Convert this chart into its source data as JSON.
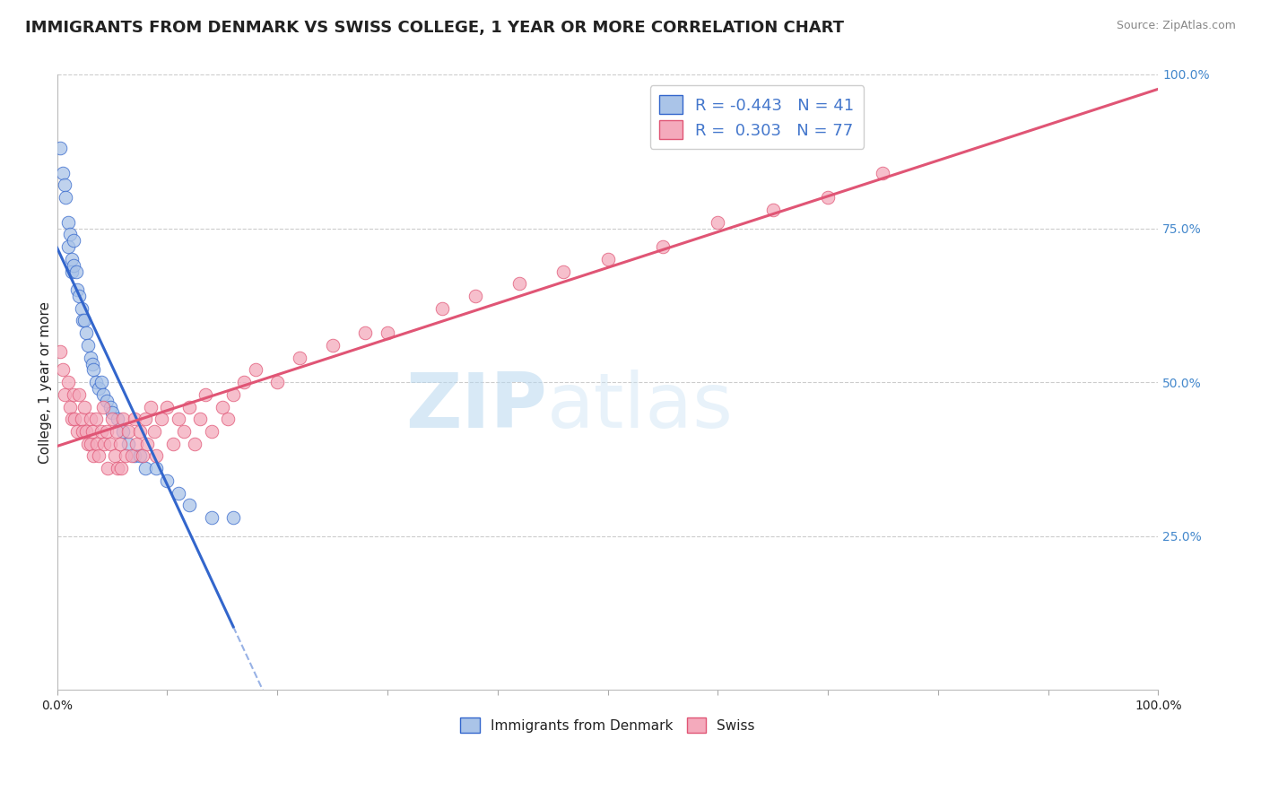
{
  "title": "IMMIGRANTS FROM DENMARK VS SWISS COLLEGE, 1 YEAR OR MORE CORRELATION CHART",
  "source_text": "Source: ZipAtlas.com",
  "ylabel": "College, 1 year or more",
  "xlim": [
    0.0,
    1.0
  ],
  "ylim": [
    0.0,
    1.0
  ],
  "ytick_positions_right": [
    0.25,
    0.5,
    0.75,
    1.0
  ],
  "grid_color": "#cccccc",
  "background_color": "#ffffff",
  "watermark_zip": "ZIP",
  "watermark_atlas": "atlas",
  "series": [
    {
      "name": "Immigrants from Denmark",
      "R": -0.443,
      "N": 41,
      "color_scatter": "#aac4e8",
      "color_line": "#3366cc",
      "color_legend_face": "#aac4e8",
      "color_legend_edge": "#3366cc",
      "x": [
        0.003,
        0.005,
        0.007,
        0.008,
        0.01,
        0.01,
        0.012,
        0.013,
        0.013,
        0.015,
        0.015,
        0.017,
        0.018,
        0.02,
        0.022,
        0.023,
        0.025,
        0.026,
        0.028,
        0.03,
        0.032,
        0.033,
        0.035,
        0.038,
        0.04,
        0.042,
        0.045,
        0.048,
        0.05,
        0.055,
        0.06,
        0.065,
        0.07,
        0.075,
        0.08,
        0.09,
        0.1,
        0.11,
        0.12,
        0.14,
        0.16
      ],
      "y": [
        0.88,
        0.84,
        0.82,
        0.8,
        0.76,
        0.72,
        0.74,
        0.7,
        0.68,
        0.73,
        0.69,
        0.68,
        0.65,
        0.64,
        0.62,
        0.6,
        0.6,
        0.58,
        0.56,
        0.54,
        0.53,
        0.52,
        0.5,
        0.49,
        0.5,
        0.48,
        0.47,
        0.46,
        0.45,
        0.44,
        0.42,
        0.4,
        0.38,
        0.38,
        0.36,
        0.36,
        0.34,
        0.32,
        0.3,
        0.28,
        0.28
      ]
    },
    {
      "name": "Swiss",
      "R": 0.303,
      "N": 77,
      "color_scatter": "#f4aabc",
      "color_line": "#e05575",
      "color_legend_face": "#f4aabc",
      "color_legend_edge": "#e05575",
      "x": [
        0.003,
        0.005,
        0.007,
        0.01,
        0.012,
        0.013,
        0.015,
        0.016,
        0.018,
        0.02,
        0.022,
        0.023,
        0.025,
        0.026,
        0.028,
        0.03,
        0.03,
        0.032,
        0.033,
        0.035,
        0.036,
        0.038,
        0.04,
        0.042,
        0.043,
        0.045,
        0.046,
        0.048,
        0.05,
        0.052,
        0.054,
        0.055,
        0.057,
        0.058,
        0.06,
        0.062,
        0.065,
        0.068,
        0.07,
        0.072,
        0.075,
        0.078,
        0.08,
        0.082,
        0.085,
        0.088,
        0.09,
        0.095,
        0.1,
        0.105,
        0.11,
        0.115,
        0.12,
        0.125,
        0.13,
        0.135,
        0.14,
        0.15,
        0.155,
        0.16,
        0.17,
        0.18,
        0.2,
        0.22,
        0.25,
        0.28,
        0.3,
        0.35,
        0.38,
        0.42,
        0.46,
        0.5,
        0.55,
        0.6,
        0.65,
        0.7,
        0.75
      ],
      "y": [
        0.55,
        0.52,
        0.48,
        0.5,
        0.46,
        0.44,
        0.48,
        0.44,
        0.42,
        0.48,
        0.44,
        0.42,
        0.46,
        0.42,
        0.4,
        0.44,
        0.4,
        0.42,
        0.38,
        0.44,
        0.4,
        0.38,
        0.42,
        0.46,
        0.4,
        0.42,
        0.36,
        0.4,
        0.44,
        0.38,
        0.42,
        0.36,
        0.4,
        0.36,
        0.44,
        0.38,
        0.42,
        0.38,
        0.44,
        0.4,
        0.42,
        0.38,
        0.44,
        0.4,
        0.46,
        0.42,
        0.38,
        0.44,
        0.46,
        0.4,
        0.44,
        0.42,
        0.46,
        0.4,
        0.44,
        0.48,
        0.42,
        0.46,
        0.44,
        0.48,
        0.5,
        0.52,
        0.5,
        0.54,
        0.56,
        0.58,
        0.58,
        0.62,
        0.64,
        0.66,
        0.68,
        0.7,
        0.72,
        0.76,
        0.78,
        0.8,
        0.84
      ]
    }
  ],
  "R_N_color": "#4477cc",
  "title_color": "#222222",
  "title_fontsize": 13,
  "axis_label_fontsize": 11,
  "tick_fontsize": 10,
  "source_fontsize": 9,
  "source_color": "#888888",
  "right_tick_color": "#4488cc"
}
